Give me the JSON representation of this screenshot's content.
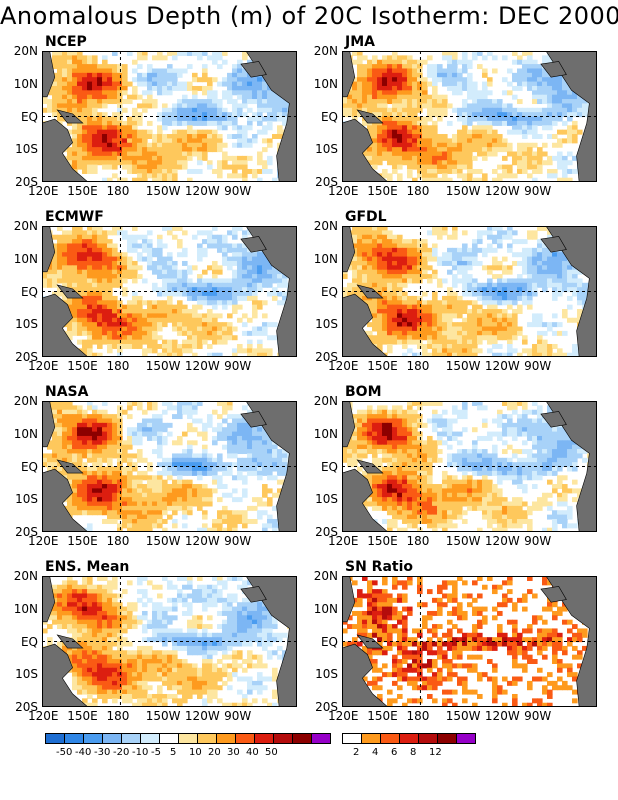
{
  "title": "Anomalous Depth (m) of 20C Isotherm: DEC 2000",
  "y_ticks": [
    "20N",
    "10N",
    "EQ",
    "10S",
    "20S"
  ],
  "x_ticks": [
    "120E",
    "150E",
    "180",
    "150W",
    "120W",
    "90W"
  ],
  "colors": {
    "land": "#6e6e6e",
    "ocean": "#ffffff",
    "grid": "#000000"
  },
  "chart_data": [
    {
      "type": "heatmap",
      "title": "NCEP",
      "field": "anomalous depth (m)",
      "pattern": "west-warm-east-cool"
    },
    {
      "type": "heatmap",
      "title": "JMA",
      "field": "anomalous depth (m)",
      "pattern": "west-warm-east-cool"
    },
    {
      "type": "heatmap",
      "title": "ECMWF",
      "field": "anomalous depth (m)",
      "pattern": "west-warm-east-cool"
    },
    {
      "type": "heatmap",
      "title": "GFDL",
      "field": "anomalous depth (m)",
      "pattern": "west-warm-east-cool"
    },
    {
      "type": "heatmap",
      "title": "NASA",
      "field": "anomalous depth (m)",
      "pattern": "west-warm-east-cool"
    },
    {
      "type": "heatmap",
      "title": "BOM",
      "field": "anomalous depth (m)",
      "pattern": "west-warm-east-cool"
    },
    {
      "type": "heatmap",
      "title": "ENS. Mean",
      "field": "anomalous depth (m)",
      "pattern": "west-warm-east-cool"
    },
    {
      "type": "heatmap",
      "title": "SN Ratio",
      "field": "signal to noise ratio",
      "pattern": "sn-ratio"
    }
  ],
  "legend_depth": {
    "colors": [
      "#1e6ed2",
      "#2f86e6",
      "#4a9cf0",
      "#7cb6f4",
      "#a8d2f8",
      "#d2ecfc",
      "#ffffff",
      "#fde6a0",
      "#fec85c",
      "#fe9a1e",
      "#fa5a14",
      "#dc1e10",
      "#b40c0c",
      "#8c0000",
      "#9600c8"
    ],
    "labels": [
      "-50",
      "-40",
      "-30",
      "-20",
      "-10",
      "-5",
      "5",
      "10",
      "20",
      "30",
      "40",
      "50"
    ]
  },
  "legend_sn": {
    "colors": [
      "#ffffff",
      "#fe9a1e",
      "#fa5a14",
      "#dc1e10",
      "#b40c0c",
      "#8c0000",
      "#9600c8"
    ],
    "labels": [
      "2",
      "4",
      "6",
      "8",
      "12"
    ]
  }
}
